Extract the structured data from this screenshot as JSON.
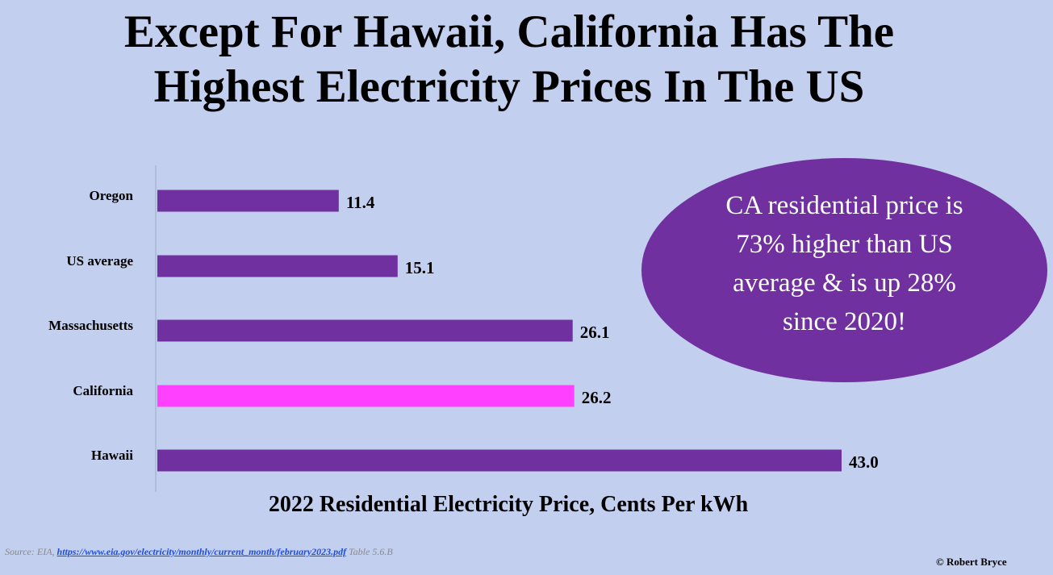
{
  "title": {
    "line1": "Except For Hawaii, California Has The",
    "line2": "Highest Electricity Prices In The US"
  },
  "chart_data": {
    "type": "bar",
    "orientation": "horizontal",
    "categories": [
      "Oregon",
      "US average",
      "Massachusetts",
      "California",
      "Hawaii"
    ],
    "values": [
      11.4,
      15.1,
      26.1,
      26.2,
      43.0
    ],
    "value_labels": [
      "11.4",
      "15.1",
      "26.1",
      "26.2",
      "43.0"
    ],
    "colors": [
      "#7030a0",
      "#7030a0",
      "#7030a0",
      "#ff40ff",
      "#7030a0"
    ],
    "xlabel": "2022 Residential Electricity Price, Cents Per kWh",
    "ylabel": "",
    "xlim": [
      0,
      43.0
    ],
    "grid": false
  },
  "callout": {
    "text": "CA residential price is 73% higher than US average & is up 28% since 2020!",
    "color": "#7030a0"
  },
  "source": {
    "prefix": "Source: EIA,",
    "url": "https://www.eia.gov/electricity/monthly/current_month/february2023.pdf",
    "suffix": "Table 5.6.B"
  },
  "credit": "© Robert Bryce"
}
